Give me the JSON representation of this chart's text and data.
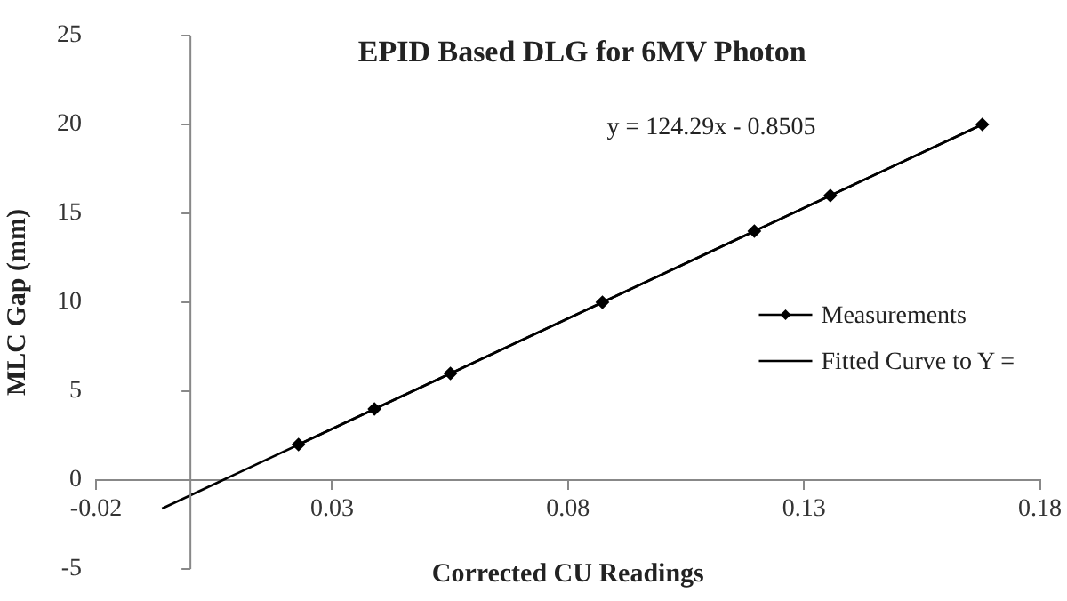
{
  "chart_data": {
    "type": "line",
    "title": "EPID Based DLG for 6MV Photon",
    "xlabel": "Corrected CU Readings",
    "ylabel": "MLC Gap (mm)",
    "annotations": [
      "y = 124.29x - 0.8505"
    ],
    "xlim": [
      -0.02,
      0.18
    ],
    "xticks": [
      -0.02,
      0.03,
      0.08,
      0.13,
      0.18
    ],
    "ylim": [
      -5,
      25
    ],
    "yticks": [
      -5,
      0,
      5,
      10,
      15,
      20,
      25
    ],
    "grid": false,
    "legend": "right",
    "line_style": "solid",
    "series": [
      {
        "name": "Measurements",
        "type": "line",
        "color": "#000000",
        "marker": "diamond",
        "x": [
          0.0229,
          0.039,
          0.0551,
          0.0873,
          0.1195,
          0.1356,
          0.1678
        ],
        "values": [
          2,
          4,
          6,
          10,
          14,
          16,
          20
        ]
      },
      {
        "name": "Fitted Curve to Y =",
        "type": "line",
        "color": "#000000",
        "marker": "none",
        "x": [
          -0.006,
          0.1678
        ],
        "values": [
          -1.6,
          20
        ]
      }
    ]
  }
}
